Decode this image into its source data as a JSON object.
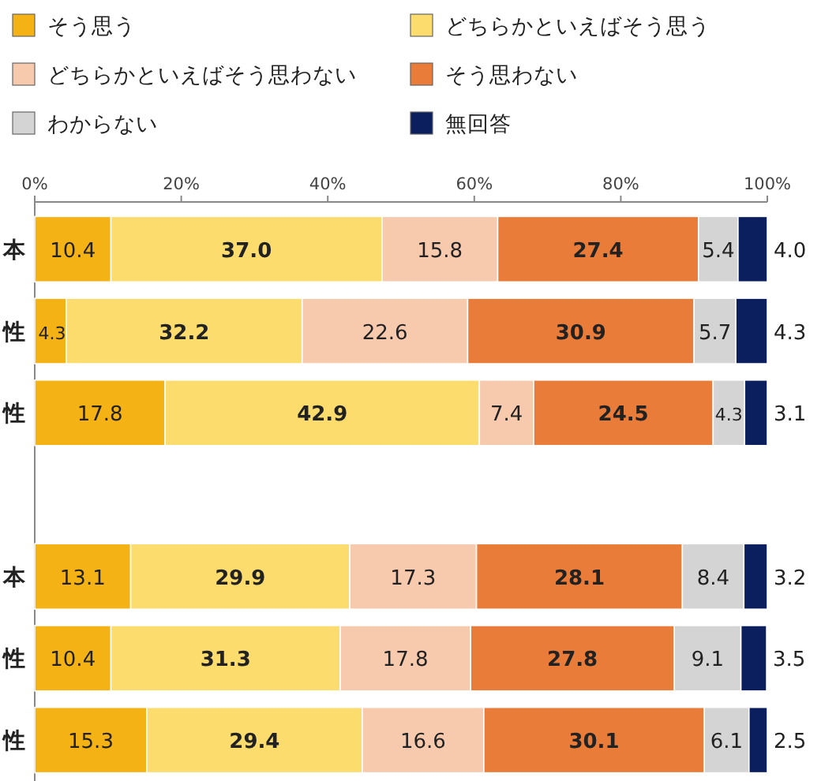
{
  "chart_data": {
    "type": "bar",
    "orientation": "horizontal",
    "stacked": true,
    "legend": "top",
    "categories": [
      "本",
      "性",
      "性",
      null,
      "本",
      "性",
      "性"
    ],
    "xlim": [
      0,
      100
    ],
    "xticks": [
      {
        "value": 0,
        "label": "0%"
      },
      {
        "value": 20,
        "label": "20%"
      },
      {
        "value": 40,
        "label": "40%"
      },
      {
        "value": 60,
        "label": "60%"
      },
      {
        "value": 80,
        "label": "80%"
      },
      {
        "value": 100,
        "label": "100%"
      }
    ],
    "series": [
      {
        "name": "そう思う",
        "color": "#f5b214",
        "values": [
          10.4,
          4.3,
          17.8,
          null,
          13.1,
          10.4,
          15.3
        ],
        "value_labels": [
          "10.4",
          "4.3",
          "17.8",
          null,
          "13.1",
          "10.4",
          "15.3"
        ]
      },
      {
        "name": "どちらかといえばそう思う",
        "color": "#fbdc6c",
        "values": [
          37.0,
          32.2,
          42.9,
          null,
          29.9,
          31.3,
          29.4
        ],
        "value_labels": [
          "37.0",
          "32.2",
          "42.9",
          null,
          "29.9",
          "31.3",
          "29.4"
        ]
      },
      {
        "name": "どちらかといえばそう思わない",
        "color": "#f7c9ad",
        "values": [
          15.8,
          22.6,
          7.4,
          null,
          17.3,
          17.8,
          16.6
        ],
        "value_labels": [
          "15.8",
          "22.6",
          "7.4",
          null,
          "17.3",
          "17.8",
          "16.6"
        ]
      },
      {
        "name": "そう思わない",
        "color": "#e87c38",
        "values": [
          27.4,
          30.9,
          24.5,
          null,
          28.1,
          27.8,
          30.1
        ],
        "value_labels": [
          "27.4",
          "30.9",
          "24.5",
          null,
          "28.1",
          "27.8",
          "30.1"
        ]
      },
      {
        "name": "わからない",
        "color": "#d4d4d4",
        "values": [
          5.4,
          5.7,
          4.3,
          null,
          8.4,
          9.1,
          6.1
        ],
        "value_labels": [
          "5.4",
          "5.7",
          "4.3",
          null,
          "8.4",
          "9.1",
          "6.1"
        ]
      },
      {
        "name": "無回答",
        "color": "#0b1f5e",
        "values": [
          4.0,
          4.3,
          3.1,
          null,
          3.2,
          3.5,
          2.5
        ],
        "value_labels": [
          "4.0",
          "4.3",
          "3.1",
          null,
          "3.2",
          "3.5",
          "2.5"
        ]
      }
    ]
  }
}
